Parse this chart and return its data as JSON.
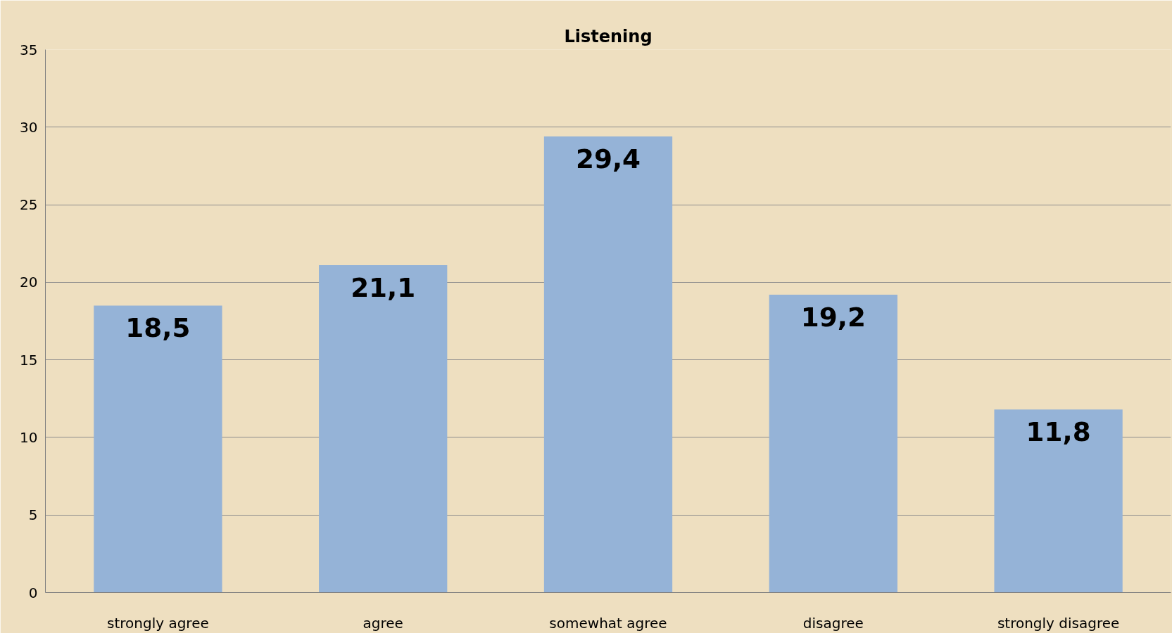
{
  "chart_data": {
    "type": "bar",
    "title": "Listening",
    "categories": [
      "strongly agree",
      "agree",
      "somewhat agree",
      "disagree",
      "strongly disagree"
    ],
    "values": [
      18.5,
      21.1,
      29.4,
      19.2,
      11.8
    ],
    "value_labels": [
      "18,5",
      "21,1",
      "29,4",
      "19,2",
      "11,8"
    ],
    "color": "#95b3d7",
    "ylim": [
      0,
      35
    ],
    "yticks": [
      0,
      5,
      10,
      15,
      20,
      25,
      30,
      35
    ],
    "grid": "y"
  }
}
